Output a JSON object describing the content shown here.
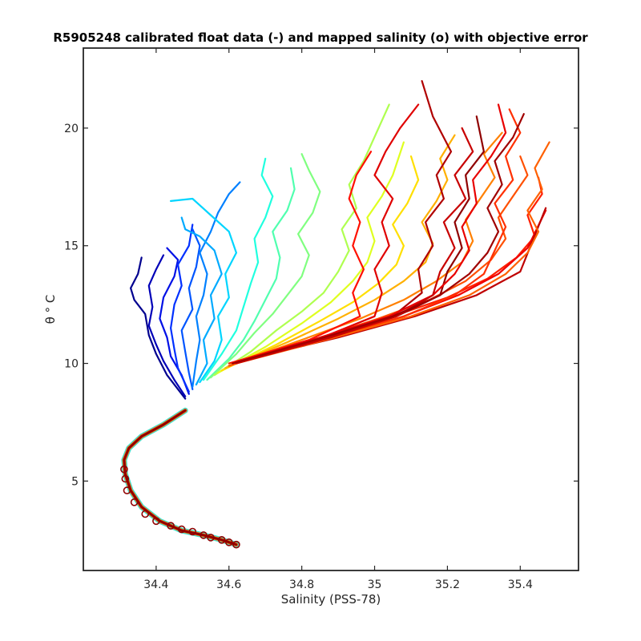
{
  "chart_data": {
    "type": "line",
    "title": "R5905248 calibrated float data (-) and mapped salinity (o) with objective error",
    "xlabel": "Salinity (PSS-78)",
    "ylabel": "θ ° C",
    "xlim": [
      34.2,
      35.56
    ],
    "ylim": [
      1.2,
      23.4
    ],
    "x_ticks": [
      34.4,
      34.6,
      34.8,
      35,
      35.2,
      35.4
    ],
    "x_tick_labels": [
      "34.4",
      "34.6",
      "34.8",
      "35",
      "35.2",
      "35.4"
    ],
    "y_ticks": [
      5,
      10,
      15,
      20
    ],
    "y_tick_labels": [
      "5",
      "10",
      "15",
      "20"
    ],
    "grid": false,
    "legend": "none",
    "colormap": "jet",
    "deep_curve": {
      "x": [
        34.62,
        34.58,
        34.53,
        34.47,
        34.41,
        34.36,
        34.33,
        34.315,
        34.312,
        34.325,
        34.36,
        34.42,
        34.48
      ],
      "y": [
        2.3,
        2.5,
        2.7,
        2.9,
        3.3,
        3.9,
        4.6,
        5.3,
        5.9,
        6.4,
        6.9,
        7.4,
        8.0
      ]
    },
    "mapped_salinity": {
      "x": [
        34.62,
        34.6,
        34.58,
        34.55,
        34.53,
        34.5,
        34.47,
        34.44,
        34.4,
        34.37,
        34.34,
        34.32,
        34.315,
        34.312
      ],
      "y": [
        2.3,
        2.4,
        2.5,
        2.6,
        2.7,
        2.85,
        2.95,
        3.1,
        3.3,
        3.6,
        4.1,
        4.6,
        5.1,
        5.5
      ]
    },
    "series": [
      {
        "x": [
          34.48,
          34.43,
          34.4,
          34.38,
          34.37,
          34.34,
          34.33,
          34.35,
          34.36
        ],
        "y": [
          8.5,
          9.5,
          10.4,
          11.2,
          12.1,
          12.7,
          13.2,
          13.8,
          14.5
        ],
        "color": "#00008f"
      },
      {
        "x": [
          34.48,
          34.45,
          34.42,
          34.4,
          34.38,
          34.39,
          34.38,
          34.4,
          34.42
        ],
        "y": [
          8.6,
          9.3,
          10.1,
          10.8,
          11.6,
          12.4,
          13.3,
          14.0,
          14.6
        ],
        "color": "#0000b8"
      },
      {
        "x": [
          34.49,
          34.47,
          34.44,
          34.43,
          34.41,
          34.42,
          34.45,
          34.46,
          34.43
        ],
        "y": [
          8.7,
          9.5,
          10.3,
          11.1,
          11.9,
          12.8,
          13.7,
          14.4,
          14.9
        ],
        "color": "#0010e6"
      },
      {
        "x": [
          34.49,
          34.46,
          34.45,
          34.44,
          34.45,
          34.47,
          34.46,
          34.49,
          34.5
        ],
        "y": [
          8.8,
          9.8,
          10.6,
          11.5,
          12.5,
          13.3,
          14.2,
          15.0,
          15.9
        ],
        "color": "#0030ff"
      },
      {
        "x": [
          34.5,
          34.49,
          34.48,
          34.47,
          34.5,
          34.49,
          34.51,
          34.52,
          34.5
        ],
        "y": [
          8.9,
          9.6,
          10.5,
          11.4,
          12.3,
          13.2,
          14.1,
          15.0,
          15.7
        ],
        "color": "#0055ff"
      },
      {
        "x": [
          34.5,
          34.51,
          34.52,
          34.51,
          34.53,
          34.54,
          34.52,
          34.55,
          34.57,
          34.6,
          34.63
        ],
        "y": [
          9.0,
          10.1,
          11.0,
          12.0,
          12.9,
          13.8,
          14.7,
          15.6,
          16.4,
          17.2,
          17.7
        ],
        "color": "#0080ff"
      },
      {
        "x": [
          34.51,
          34.54,
          34.53,
          34.56,
          34.55,
          34.58,
          34.56,
          34.52,
          34.48,
          34.47
        ],
        "y": [
          9.1,
          10.0,
          11.0,
          11.9,
          12.9,
          13.8,
          14.8,
          15.4,
          15.7,
          16.2
        ],
        "color": "#00aaff"
      },
      {
        "x": [
          34.52,
          34.56,
          34.58,
          34.57,
          34.6,
          34.59,
          34.62,
          34.6,
          34.55,
          34.5,
          34.44
        ],
        "y": [
          9.2,
          10.1,
          11.0,
          12.0,
          12.8,
          13.8,
          14.7,
          15.6,
          16.3,
          17.0,
          16.9
        ],
        "color": "#00d5ff"
      },
      {
        "x": [
          34.53,
          34.58,
          34.62,
          34.64,
          34.66,
          34.68,
          34.67,
          34.7,
          34.72,
          34.69,
          34.7
        ],
        "y": [
          9.3,
          10.4,
          11.4,
          12.4,
          13.4,
          14.3,
          15.3,
          16.2,
          17.1,
          18.0,
          18.7
        ],
        "color": "#20ffdf"
      },
      {
        "x": [
          34.54,
          34.6,
          34.64,
          34.67,
          34.7,
          34.73,
          34.74,
          34.72,
          34.76,
          34.78,
          34.77
        ],
        "y": [
          9.3,
          10.2,
          11.0,
          11.8,
          12.7,
          13.6,
          14.5,
          15.6,
          16.5,
          17.4,
          18.3
        ],
        "color": "#50ffaf"
      },
      {
        "x": [
          34.55,
          34.62,
          34.67,
          34.72,
          34.76,
          34.8,
          34.82,
          34.79,
          34.83,
          34.85,
          34.82,
          34.8
        ],
        "y": [
          9.4,
          10.4,
          11.3,
          12.1,
          12.9,
          13.7,
          14.6,
          15.5,
          16.4,
          17.3,
          18.2,
          18.9
        ],
        "color": "#80ff80"
      },
      {
        "x": [
          34.56,
          34.66,
          34.73,
          34.8,
          34.86,
          34.9,
          34.93,
          34.91,
          34.95,
          34.93,
          34.97,
          35.04
        ],
        "y": [
          9.5,
          10.5,
          11.4,
          12.2,
          13.0,
          13.9,
          14.8,
          15.7,
          16.6,
          17.6,
          18.6,
          21.0
        ],
        "color": "#afff50"
      },
      {
        "x": [
          34.57,
          34.7,
          34.8,
          34.88,
          34.94,
          34.98,
          35.0,
          34.98,
          35.02,
          35.05,
          35.08
        ],
        "y": [
          9.6,
          10.7,
          11.7,
          12.6,
          13.5,
          14.3,
          15.2,
          16.2,
          17.1,
          18.0,
          19.4
        ],
        "color": "#dfff20"
      },
      {
        "x": [
          34.58,
          34.73,
          34.85,
          34.94,
          35.01,
          35.06,
          35.08,
          35.05,
          35.09,
          35.12,
          35.1
        ],
        "y": [
          9.7,
          10.8,
          11.8,
          12.6,
          13.4,
          14.2,
          15.0,
          15.9,
          16.8,
          17.8,
          18.8
        ],
        "color": "#ffdf00"
      },
      {
        "x": [
          34.59,
          34.76,
          34.9,
          35.0,
          35.08,
          35.14,
          35.16,
          35.13,
          35.17,
          35.2,
          35.18,
          35.22
        ],
        "y": [
          9.8,
          10.9,
          11.9,
          12.7,
          13.5,
          14.3,
          15.1,
          16.0,
          16.9,
          17.8,
          18.7,
          19.7
        ],
        "color": "#ffb000"
      },
      {
        "x": [
          34.6,
          34.8,
          34.96,
          35.08,
          35.17,
          35.24,
          35.27,
          35.25,
          35.29,
          35.33,
          35.3,
          35.35
        ],
        "y": [
          9.9,
          11.0,
          11.9,
          12.7,
          13.5,
          14.3,
          15.2,
          16.1,
          17.0,
          17.9,
          18.9,
          19.8
        ],
        "color": "#ff8000"
      },
      {
        "x": [
          34.6,
          34.83,
          35.01,
          35.15,
          35.25,
          35.32,
          35.36,
          35.34,
          35.38,
          35.42,
          35.4
        ],
        "y": [
          9.9,
          11.0,
          11.9,
          12.7,
          13.5,
          14.4,
          15.3,
          16.2,
          17.1,
          18.0,
          18.8
        ],
        "color": "#ff5000"
      },
      {
        "x": [
          34.61,
          34.86,
          35.05,
          35.2,
          35.31,
          35.39,
          35.44,
          35.42,
          35.46,
          35.45
        ],
        "y": [
          10.0,
          11.1,
          12.0,
          12.8,
          13.6,
          14.5,
          15.4,
          16.3,
          17.2,
          17.9
        ],
        "color": "#ff2000"
      },
      {
        "x": [
          34.62,
          34.88,
          35.08,
          35.23,
          35.34,
          35.42,
          35.47
        ],
        "y": [
          10.0,
          11.1,
          12.0,
          12.9,
          13.8,
          14.9,
          16.5
        ],
        "color": "#ef0000"
      },
      {
        "x": [
          34.63,
          34.9,
          35.11,
          35.28,
          35.4,
          35.47
        ],
        "y": [
          10.1,
          11.1,
          12.0,
          12.9,
          13.9,
          16.6
        ],
        "color": "#bf0000"
      },
      {
        "x": [
          34.61,
          34.86,
          35.06,
          35.18,
          35.2,
          35.24,
          35.22,
          35.26,
          35.25,
          35.3,
          35.28
        ],
        "y": [
          10.0,
          11.1,
          12.0,
          12.9,
          13.9,
          14.9,
          16.0,
          17.0,
          18.0,
          19.0,
          20.5
        ],
        "color": "#8f0000"
      },
      {
        "x": [
          34.62,
          34.87,
          35.05,
          35.13,
          35.12,
          35.16,
          35.14,
          35.19,
          35.17,
          35.21,
          35.16,
          35.13
        ],
        "y": [
          10.0,
          11.1,
          12.0,
          13.0,
          14.0,
          15.0,
          16.0,
          17.0,
          18.0,
          19.0,
          20.5,
          22.0
        ],
        "color": "#b00000"
      },
      {
        "x": [
          34.61,
          34.84,
          35.0,
          35.02,
          35.0,
          35.04,
          35.02,
          35.05,
          35.0,
          35.03,
          35.07,
          35.12
        ],
        "y": [
          10.0,
          11.0,
          12.0,
          13.0,
          14.0,
          15.0,
          16.0,
          17.0,
          18.0,
          19.0,
          20.0,
          21.0
        ],
        "color": "#e00000"
      },
      {
        "x": [
          34.6,
          34.82,
          34.96,
          34.94,
          34.97,
          34.94,
          34.96,
          34.93,
          34.95,
          34.99
        ],
        "y": [
          10.0,
          11.0,
          12.0,
          13.0,
          14.0,
          15.0,
          16.0,
          17.0,
          18.0,
          19.0
        ],
        "color": "#ff1000"
      },
      {
        "x": [
          34.62,
          34.88,
          35.08,
          35.22,
          35.3,
          35.33,
          35.36,
          35.33,
          35.38,
          35.36,
          35.4,
          35.37
        ],
        "y": [
          10.0,
          11.1,
          12.0,
          12.9,
          13.8,
          14.8,
          15.8,
          16.8,
          17.8,
          18.8,
          19.8,
          20.8
        ],
        "color": "#ff3000"
      },
      {
        "x": [
          34.61,
          34.85,
          35.04,
          35.16,
          35.22,
          35.26,
          35.24,
          35.28,
          35.27,
          35.32,
          35.36,
          35.34
        ],
        "y": [
          10.0,
          11.1,
          12.0,
          12.9,
          13.8,
          14.8,
          15.8,
          16.8,
          17.8,
          18.8,
          19.8,
          21.0
        ],
        "color": "#e80000"
      },
      {
        "x": [
          34.62,
          34.89,
          35.1,
          35.26,
          35.36,
          35.42,
          35.45,
          35.42,
          35.46,
          35.44,
          35.48
        ],
        "y": [
          10.0,
          11.1,
          12.0,
          12.9,
          13.8,
          14.7,
          15.6,
          16.5,
          17.4,
          18.3,
          19.4
        ],
        "color": "#ff6000"
      },
      {
        "x": [
          34.62,
          34.88,
          35.06,
          35.16,
          35.18,
          35.22,
          35.19,
          35.25,
          35.22,
          35.27,
          35.24
        ],
        "y": [
          10.0,
          11.1,
          12.0,
          12.9,
          13.9,
          14.9,
          16.0,
          17.0,
          18.0,
          19.0,
          20.0
        ],
        "color": "#c80000"
      },
      {
        "x": [
          34.61,
          34.86,
          35.05,
          35.18,
          35.26,
          35.31,
          35.34,
          35.31,
          35.35,
          35.33,
          35.38,
          35.41
        ],
        "y": [
          10.0,
          11.1,
          12.0,
          12.9,
          13.8,
          14.7,
          15.6,
          16.6,
          17.6,
          18.6,
          19.6,
          20.6
        ],
        "color": "#a00000"
      }
    ]
  }
}
